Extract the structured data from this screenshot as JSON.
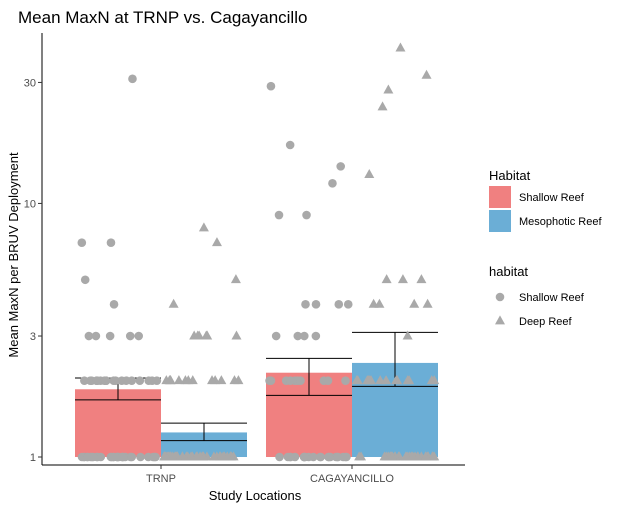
{
  "chart_data": {
    "type": "bar",
    "title": "Mean MaxN at TRNP vs. Cagayancillo",
    "xlabel": "Study Locations",
    "ylabel": "Mean MaxN per BRUV Deployment",
    "y_scale": "log10",
    "ylim": [
      0.93,
      47
    ],
    "yticks": [
      1,
      3,
      10,
      30
    ],
    "categories": [
      "TRNP",
      "CAGAYANCILLO"
    ],
    "grid": false,
    "legend_position": "right",
    "colors": {
      "shallow_reef": "#F08080",
      "mesophotic_reef": "#6BAED6",
      "points": "#A9A9A9",
      "axis": "#000000"
    },
    "legends": [
      {
        "title": "Habitat",
        "kind": "fill",
        "entries": [
          {
            "label": "Shallow Reef",
            "color": "#F08080"
          },
          {
            "label": "Mesophotic Reef",
            "color": "#6BAED6"
          }
        ]
      },
      {
        "title": "habitat",
        "kind": "shape",
        "entries": [
          {
            "label": "Shallow Reef",
            "shape": "circle"
          },
          {
            "label": "Deep Reef",
            "shape": "triangle"
          }
        ]
      }
    ],
    "series": [
      {
        "name": "Shallow Reef",
        "fill": "#F08080",
        "shape": "circle",
        "values": [
          1.85,
          2.15
        ],
        "error": [
          {
            "low": 1.68,
            "high": 2.05
          },
          {
            "low": 1.75,
            "high": 2.45
          }
        ],
        "points": [
          [
            1,
            1,
            1,
            1,
            1,
            1,
            1,
            1,
            1,
            1,
            1,
            1,
            1,
            1,
            1,
            1,
            1,
            1,
            1,
            1,
            1,
            1,
            1,
            1,
            1,
            1,
            1,
            1,
            1,
            1,
            2,
            2,
            2,
            2,
            2,
            2,
            2,
            2,
            2,
            2,
            2,
            2,
            2,
            2,
            2,
            2,
            2,
            2,
            2,
            3,
            3,
            3,
            3,
            3,
            4,
            5,
            7,
            7,
            31
          ],
          [
            1,
            1,
            1,
            1,
            1,
            1,
            1,
            1,
            1,
            1,
            1,
            1,
            1,
            1,
            1,
            1,
            1,
            1,
            1,
            1,
            1,
            1,
            2,
            2,
            2,
            2,
            2,
            2,
            2,
            2,
            2,
            2,
            3,
            3,
            3,
            3,
            4,
            4,
            4,
            4,
            9,
            9,
            12,
            14,
            17,
            29
          ]
        ]
      },
      {
        "name": "Mesophotic Reef",
        "fill": "#6BAED6",
        "shape": "triangle",
        "values": [
          1.25,
          2.35
        ],
        "error": [
          {
            "low": 1.16,
            "high": 1.36
          },
          {
            "low": 1.9,
            "high": 3.1
          }
        ],
        "points": [
          [
            1,
            1,
            1,
            1,
            1,
            1,
            1,
            1,
            1,
            1,
            1,
            1,
            1,
            1,
            1,
            1,
            1,
            1,
            1,
            1,
            1,
            1,
            1,
            1,
            1,
            1,
            1,
            1,
            1,
            1,
            1,
            1,
            1,
            1,
            1,
            1,
            1,
            1,
            2,
            2,
            2,
            2,
            2,
            2,
            2,
            2,
            2,
            2,
            2,
            2,
            2,
            3,
            3,
            3,
            3,
            3,
            3,
            4,
            5,
            7,
            8
          ],
          [
            1,
            1,
            1,
            1,
            1,
            1,
            1,
            1,
            1,
            1,
            1,
            1,
            1,
            1,
            1,
            1,
            1,
            1,
            1,
            1,
            1,
            1,
            1,
            1,
            1,
            1,
            1,
            1,
            1,
            2,
            2,
            2,
            2,
            2,
            2,
            2,
            2,
            2,
            2,
            2,
            2,
            2,
            2,
            3,
            4,
            4,
            4,
            4,
            5,
            5,
            5,
            13,
            24,
            28,
            32,
            41
          ]
        ]
      }
    ]
  }
}
